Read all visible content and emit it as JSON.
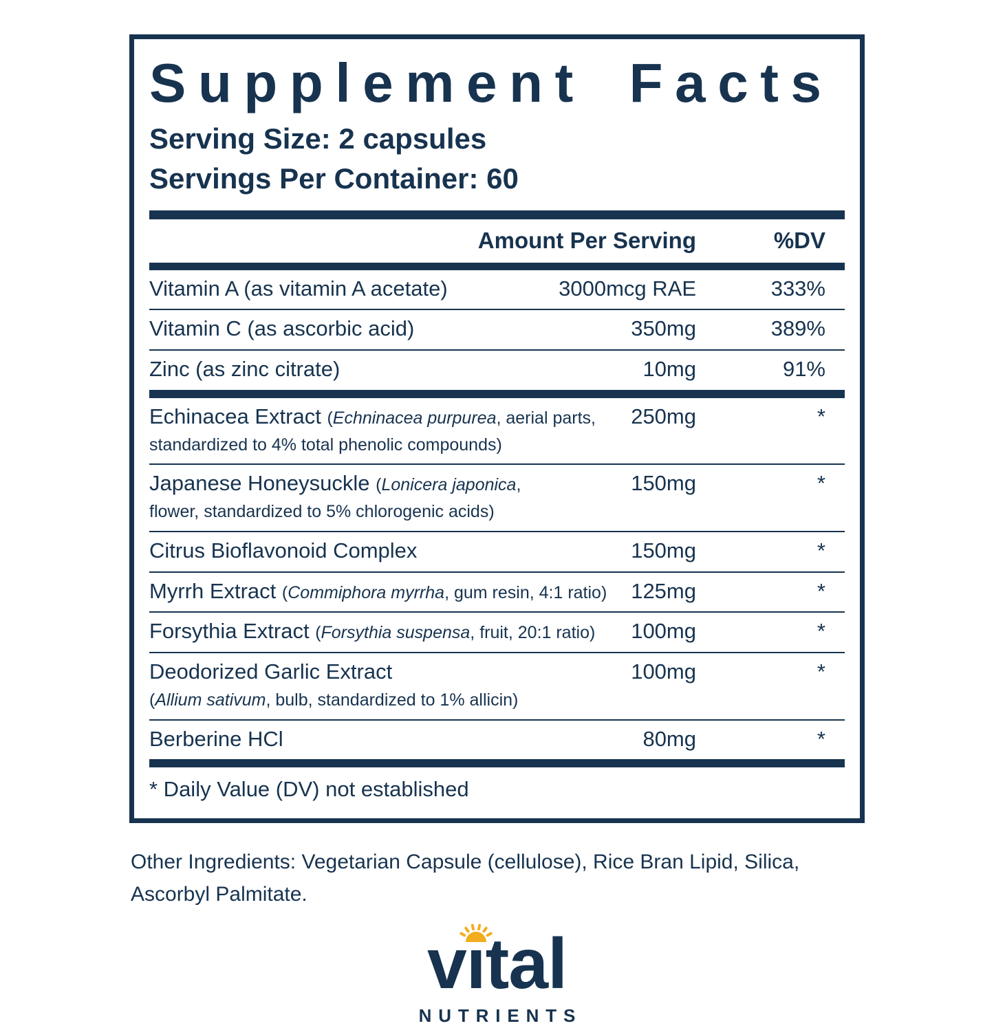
{
  "supplement_facts": {
    "title": "Supplement Facts",
    "serving_size": "Serving Size: 2 capsules",
    "servings_per_container": "Servings Per Container: 60",
    "header": {
      "amount": "Amount Per Serving",
      "dv": "%DV"
    },
    "rows": [
      {
        "separator": "none",
        "name": [
          {
            "text": "Vitamin A (as vitamin A acetate)",
            "style": "main"
          }
        ],
        "amount": "3000mcg RAE",
        "dv": "333%"
      },
      {
        "separator": "thin",
        "name": [
          {
            "text": "Vitamin C (as ascorbic acid)",
            "style": "main"
          }
        ],
        "amount": "350mg",
        "dv": "389%"
      },
      {
        "separator": "thin",
        "name": [
          {
            "text": "Zinc (as zinc citrate)",
            "style": "main"
          }
        ],
        "amount": "10mg",
        "dv": "91%"
      },
      {
        "separator": "thick",
        "name": [
          {
            "text": "Echinacea Extract ",
            "style": "main"
          },
          {
            "text": "(",
            "style": "detail"
          },
          {
            "text": "Echninacea purpurea",
            "style": "detail-italic"
          },
          {
            "text": ", aerial parts,",
            "style": "detail"
          },
          {
            "style": "break"
          },
          {
            "text": "standardized to 4% total phenolic compounds)",
            "style": "detail"
          }
        ],
        "amount": "250mg",
        "dv": "*"
      },
      {
        "separator": "thin",
        "name": [
          {
            "text": "Japanese Honeysuckle ",
            "style": "main"
          },
          {
            "text": "(",
            "style": "detail"
          },
          {
            "text": "Lonicera japonica",
            "style": "detail-italic"
          },
          {
            "text": ",",
            "style": "detail"
          },
          {
            "style": "break"
          },
          {
            "text": "flower, standardized to 5% chlorogenic acids)",
            "style": "detail"
          }
        ],
        "amount": "150mg",
        "dv": "*"
      },
      {
        "separator": "thin",
        "name": [
          {
            "text": "Citrus Bioflavonoid Complex",
            "style": "main"
          }
        ],
        "amount": "150mg",
        "dv": "*"
      },
      {
        "separator": "thin",
        "name": [
          {
            "text": "Myrrh Extract ",
            "style": "main"
          },
          {
            "text": "(",
            "style": "detail"
          },
          {
            "text": "Commiphora myrrha",
            "style": "detail-italic"
          },
          {
            "text": ", gum resin, 4:1 ratio)",
            "style": "detail"
          }
        ],
        "amount": "125mg",
        "dv": "*"
      },
      {
        "separator": "thin",
        "name": [
          {
            "text": "Forsythia Extract ",
            "style": "main"
          },
          {
            "text": "(",
            "style": "detail"
          },
          {
            "text": "Forsythia suspensa",
            "style": "detail-italic"
          },
          {
            "text": ", fruit, 20:1 ratio)",
            "style": "detail"
          }
        ],
        "amount": "100mg",
        "dv": "*"
      },
      {
        "separator": "thin",
        "name": [
          {
            "text": "Deodorized Garlic Extract",
            "style": "main"
          },
          {
            "style": "break"
          },
          {
            "text": "(",
            "style": "detail"
          },
          {
            "text": "Allium sativum",
            "style": "detail-italic"
          },
          {
            "text": ", bulb, standardized to 1% allicin)",
            "style": "detail"
          }
        ],
        "amount": "100mg",
        "dv": "*"
      },
      {
        "separator": "thin",
        "name": [
          {
            "text": "Berberine HCl",
            "style": "main"
          }
        ],
        "amount": "80mg",
        "dv": "*"
      }
    ],
    "footnote": "* Daily Value (DV) not established"
  },
  "other_ingredients": "Other Ingredients: Vegetarian Capsule (cellulose), Rice Bran Lipid, Silica, Ascorbyl Palmitate.",
  "logo": {
    "brand": "vital",
    "tagline": "NUTRIENTS"
  },
  "colors": {
    "navy": "#17334F",
    "sun": "#F3AC1D"
  }
}
